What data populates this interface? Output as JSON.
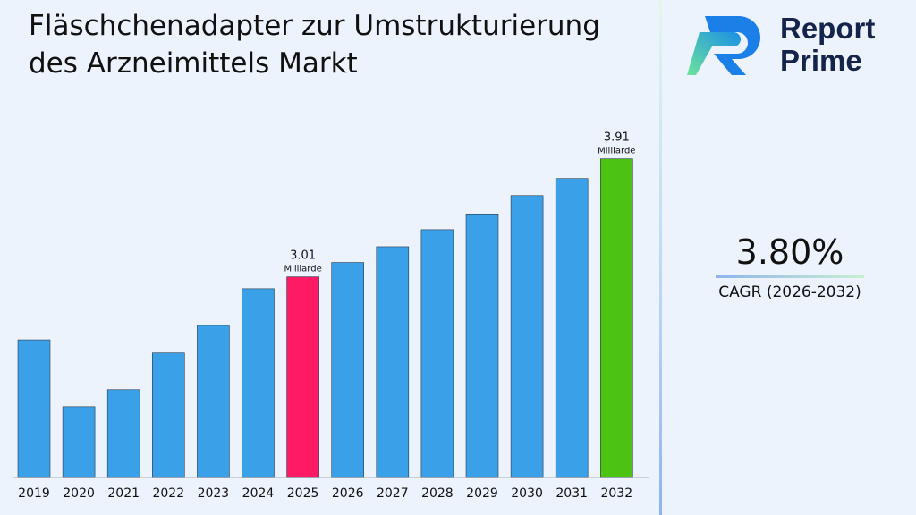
{
  "title": "Fläschchenadapter zur Umstrukturierung des Arzneimittels Markt",
  "logo": {
    "line1": "Report",
    "line2": "Prime"
  },
  "cagr": {
    "value": "3.80%",
    "label": "CAGR (2026-2032)"
  },
  "chart_data": {
    "type": "bar",
    "title": "Fläschchenadapter zur Umstrukturierung des Arzneimittels Markt",
    "categories": [
      "2019",
      "2020",
      "2021",
      "2022",
      "2023",
      "2024",
      "2025",
      "2026",
      "2027",
      "2028",
      "2029",
      "2030",
      "2031",
      "2032"
    ],
    "values": [
      2.53,
      2.02,
      2.15,
      2.43,
      2.64,
      2.92,
      3.01,
      3.12,
      3.24,
      3.37,
      3.49,
      3.63,
      3.76,
      3.91
    ],
    "unit": "Milliarde",
    "ylim": [
      1.48,
      4.44
    ],
    "annotations": [
      {
        "category": "2025",
        "value": "3.01",
        "unit": "Milliarde"
      },
      {
        "category": "2032",
        "value": "3.91",
        "unit": "Milliarde"
      }
    ],
    "colors": {
      "default": "#3aa0e8",
      "highlight_2025": "#fe1a64",
      "highlight_2032": "#4cc213"
    },
    "grid": false,
    "legend": "none"
  }
}
